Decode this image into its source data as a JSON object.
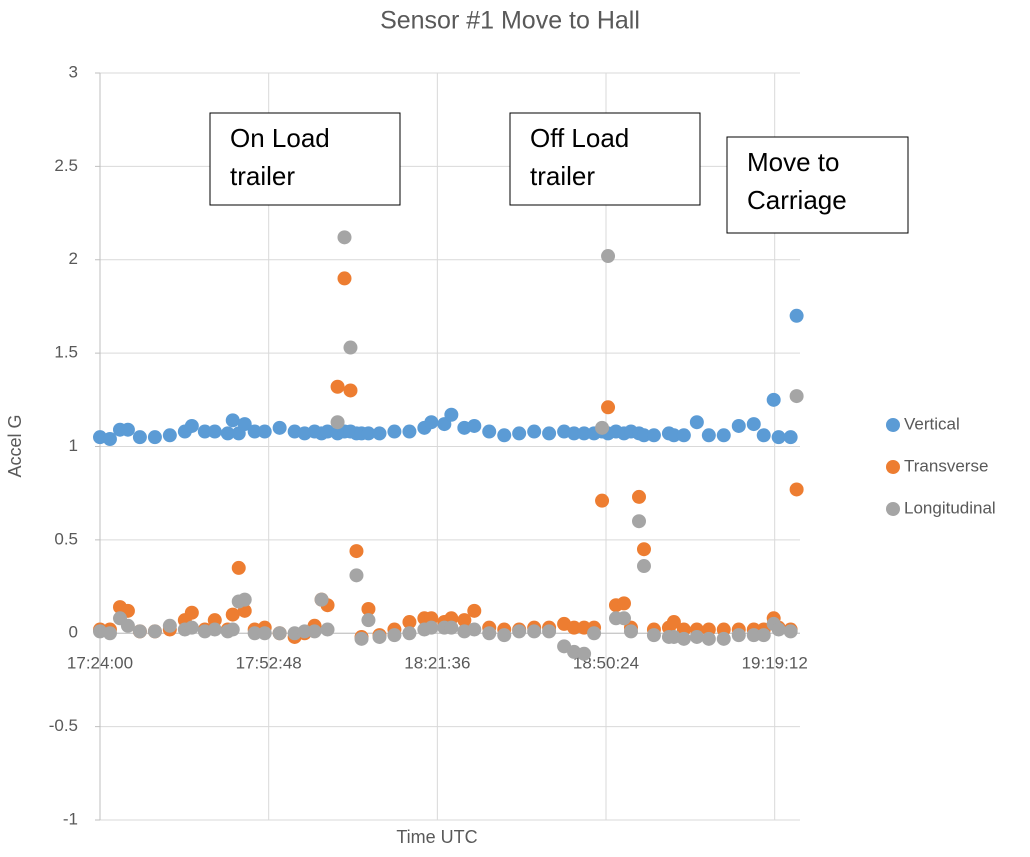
{
  "chart_data": {
    "type": "scatter",
    "title": "Sensor #1 Move to Hall",
    "x_label": "Time UTC",
    "y_label": "Accel G",
    "xlim": [
      0.725,
      0.808
    ],
    "xticks": [
      {
        "value": 0.725,
        "label": "17:24:00"
      },
      {
        "value": 0.745,
        "label": "17:52:48"
      },
      {
        "value": 0.765,
        "label": "18:21:36"
      },
      {
        "value": 0.785,
        "label": "18:50:24"
      },
      {
        "value": 0.805,
        "label": "19:19:12"
      }
    ],
    "ylim": [
      -1,
      3
    ],
    "yticks": [
      -1,
      -0.5,
      0,
      0.5,
      1,
      1.5,
      2,
      2.5,
      3
    ],
    "grid": true,
    "legend": "right",
    "annotations": [
      {
        "lines": [
          "On Load",
          "trailer"
        ]
      },
      {
        "lines": [
          "Off Load",
          "trailer"
        ]
      },
      {
        "lines": [
          "Move to",
          "Carriage"
        ]
      }
    ],
    "x": [
      0.725,
      0.72618,
      0.72737,
      0.72831,
      0.72973,
      0.73151,
      0.73328,
      0.73506,
      0.73589,
      0.73743,
      0.73861,
      0.74015,
      0.74074,
      0.74145,
      0.74216,
      0.74334,
      0.74453,
      0.7463,
      0.74808,
      0.74926,
      0.75044,
      0.75127,
      0.75198,
      0.75317,
      0.75399,
      0.7547,
      0.75541,
      0.75601,
      0.75683,
      0.75814,
      0.75991,
      0.76169,
      0.76346,
      0.76429,
      0.76583,
      0.76666,
      0.7682,
      0.76938,
      0.77115,
      0.77293,
      0.7747,
      0.77648,
      0.77825,
      0.78003,
      0.78121,
      0.7824,
      0.78358,
      0.78453,
      0.78524,
      0.78618,
      0.78713,
      0.78796,
      0.78891,
      0.7895,
      0.79068,
      0.79246,
      0.79305,
      0.79423,
      0.79577,
      0.79719,
      0.79896,
      0.80074,
      0.80252,
      0.8037,
      0.80488,
      0.80547,
      0.80689,
      0.8076
    ],
    "series": [
      {
        "name": "Vertical",
        "color": "#5b9bd5",
        "values": [
          1.05,
          1.04,
          1.09,
          1.09,
          1.05,
          1.05,
          1.06,
          1.08,
          1.11,
          1.08,
          1.08,
          1.07,
          1.14,
          1.07,
          1.12,
          1.08,
          1.08,
          1.1,
          1.08,
          1.07,
          1.08,
          1.07,
          1.08,
          1.07,
          1.08,
          1.08,
          1.07,
          1.07,
          1.07,
          1.07,
          1.08,
          1.08,
          1.1,
          1.13,
          1.12,
          1.17,
          1.1,
          1.11,
          1.08,
          1.06,
          1.07,
          1.08,
          1.07,
          1.08,
          1.07,
          1.07,
          1.07,
          1.08,
          1.07,
          1.08,
          1.07,
          1.08,
          1.07,
          1.06,
          1.06,
          1.07,
          1.06,
          1.06,
          1.13,
          1.06,
          1.06,
          1.11,
          1.12,
          1.06,
          1.25,
          1.05,
          1.05,
          1.7
        ]
      },
      {
        "name": "Transverse",
        "color": "#ed7d31",
        "values": [
          0.02,
          0.02,
          0.14,
          0.12,
          0.01,
          0.01,
          0.02,
          0.07,
          0.11,
          0.02,
          0.07,
          0.02,
          0.1,
          0.35,
          0.12,
          0.02,
          0.03,
          0.0,
          -0.02,
          0.0,
          0.04,
          0.18,
          0.15,
          1.32,
          1.9,
          1.3,
          0.44,
          -0.02,
          0.13,
          -0.01,
          0.02,
          0.06,
          0.08,
          0.08,
          0.06,
          0.08,
          0.07,
          0.12,
          0.03,
          0.02,
          0.02,
          0.03,
          0.03,
          0.05,
          0.03,
          0.03,
          0.03,
          0.71,
          1.21,
          0.15,
          0.16,
          0.03,
          0.73,
          0.45,
          0.02,
          0.03,
          0.06,
          0.02,
          0.02,
          0.02,
          0.02,
          0.02,
          0.02,
          0.02,
          0.08,
          0.03,
          0.02,
          0.77
        ]
      },
      {
        "name": "Longitudinal",
        "color": "#a5a5a5",
        "values": [
          0.01,
          0.0,
          0.08,
          0.04,
          0.01,
          0.01,
          0.04,
          0.02,
          0.03,
          0.01,
          0.02,
          0.01,
          0.02,
          0.17,
          0.18,
          0.0,
          0.0,
          0.0,
          0.0,
          0.01,
          0.01,
          0.18,
          0.02,
          1.13,
          2.12,
          1.53,
          0.31,
          -0.03,
          0.07,
          -0.02,
          -0.01,
          0.0,
          0.02,
          0.03,
          0.03,
          0.03,
          0.01,
          0.02,
          0.0,
          -0.01,
          0.01,
          0.01,
          0.01,
          -0.07,
          -0.1,
          -0.11,
          0.0,
          1.1,
          2.02,
          0.08,
          0.08,
          0.01,
          0.6,
          0.36,
          -0.01,
          -0.02,
          -0.02,
          -0.03,
          -0.02,
          -0.03,
          -0.03,
          -0.01,
          -0.01,
          -0.01,
          0.05,
          0.02,
          0.01,
          1.27
        ]
      }
    ]
  }
}
